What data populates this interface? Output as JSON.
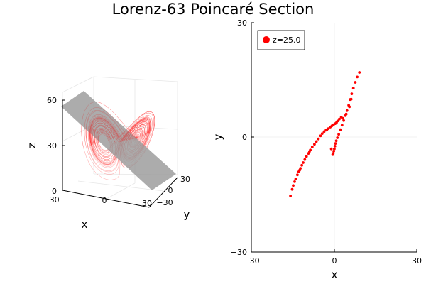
{
  "title": "Lorenz-63 Poincaré Section",
  "colors": {
    "trajectory": "#ff0000",
    "plane": "#888888",
    "grid": "#e6e6e6",
    "axis": "#000000"
  },
  "chart_data": [
    {
      "type": "line3d",
      "description_none": "",
      "xlabel": "x",
      "ylabel": "y",
      "zlabel": "z",
      "xlim": [
        -30,
        30
      ],
      "ylim": [
        -30,
        30
      ],
      "zlim": [
        0,
        60
      ],
      "xticks": [
        "−30",
        "0",
        "30"
      ],
      "yticks": [
        "−30",
        "0",
        "30"
      ],
      "zticks": [
        "0",
        "30",
        "60"
      ],
      "plane_z": 25.0
    },
    {
      "type": "scatter",
      "xlabel": "x",
      "ylabel": "y",
      "xlim": [
        -30,
        30
      ],
      "ylim": [
        -30,
        30
      ],
      "xticks": [
        "−30",
        "0",
        "30"
      ],
      "yticks": [
        "−30",
        "0",
        "30"
      ],
      "legend": {
        "label": "z=25.0",
        "position": "top-left"
      },
      "series": [
        {
          "name": "z=25.0",
          "points": [
            [
              -15.8,
              -15.3
            ],
            [
              -15.2,
              -13.6
            ],
            [
              -14.8,
              -12.6
            ],
            [
              -14.3,
              -11.6
            ],
            [
              -13.9,
              -10.9
            ],
            [
              -13.3,
              -9.8
            ],
            [
              -12.8,
              -9.0
            ],
            [
              -12.2,
              -8.1
            ],
            [
              -11.7,
              -7.3
            ],
            [
              -11.2,
              -6.6
            ],
            [
              -10.6,
              -5.8
            ],
            [
              -10.0,
              -5.0
            ],
            [
              -9.3,
              -4.2
            ],
            [
              -8.6,
              -3.3
            ],
            [
              -7.9,
              -2.5
            ],
            [
              -7.1,
              -1.8
            ],
            [
              -6.4,
              -1.1
            ],
            [
              -5.7,
              -0.4
            ],
            [
              -4.9,
              0.4
            ],
            [
              -4.3,
              1.0
            ],
            [
              -3.6,
              1.5
            ],
            [
              -2.9,
              1.9
            ],
            [
              -2.1,
              2.3
            ],
            [
              -1.4,
              2.7
            ],
            [
              -0.8,
              3.0
            ],
            [
              -0.2,
              3.3
            ],
            [
              0.4,
              3.6
            ],
            [
              -0.3,
              -4.2
            ],
            [
              -0.1,
              -3.6
            ],
            [
              0.1,
              -3.0
            ],
            [
              0.3,
              -2.3
            ],
            [
              0.5,
              -1.6
            ],
            [
              0.8,
              -0.9
            ],
            [
              1.2,
              -0.1
            ],
            [
              1.7,
              0.8
            ],
            [
              2.3,
              2.0
            ],
            [
              2.9,
              3.2
            ],
            [
              3.5,
              4.4
            ],
            [
              4.1,
              5.7
            ],
            [
              4.7,
              7.0
            ],
            [
              5.3,
              8.4
            ],
            [
              5.8,
              9.9
            ],
            [
              6.4,
              11.4
            ],
            [
              7.0,
              12.9
            ],
            [
              7.7,
              14.4
            ],
            [
              8.4,
              15.8
            ],
            [
              9.2,
              17.0
            ],
            [
              3.2,
              5.0
            ],
            [
              2.6,
              5.3
            ],
            [
              1.9,
              4.8
            ],
            [
              1.3,
              4.3
            ],
            [
              0.9,
              3.9
            ],
            [
              -1.0,
              -3.0
            ],
            [
              -0.5,
              -4.5
            ],
            [
              4.4,
              6.1
            ],
            [
              5.6,
              8.0
            ],
            [
              6.2,
              10.0
            ],
            [
              -2.6,
              2.0
            ],
            [
              -8.9,
              -3.7
            ],
            [
              -12.5,
              -8.6
            ]
          ]
        }
      ]
    }
  ]
}
